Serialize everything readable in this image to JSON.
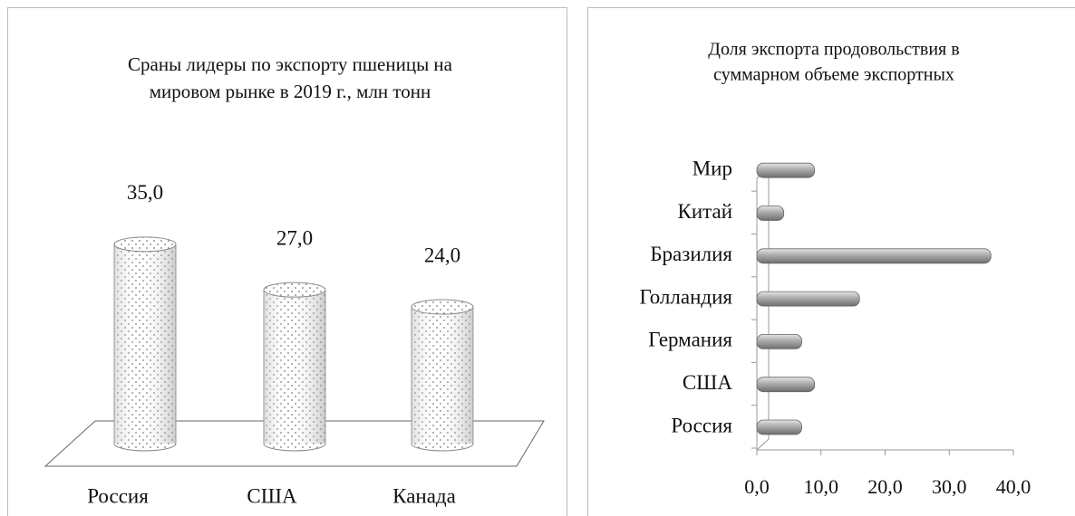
{
  "chart_data": [
    {
      "type": "cylinder",
      "title": [
        "Сраны лидеры по экспорту пшеницы на",
        "мировом рынке в 2019 г., млн тонн"
      ],
      "categories": [
        "Россия",
        "США",
        "Канада"
      ],
      "values": [
        35.0,
        27.0,
        24.0
      ],
      "value_labels": [
        "35,0",
        "27,0",
        "24,0"
      ]
    },
    {
      "type": "hbar",
      "title": [
        "Доля экспорта продовольствия в",
        "суммарном объеме экспортных"
      ],
      "categories": [
        "Россия",
        "США",
        "Германия",
        "Голландия",
        "Бразилия",
        "Китай",
        "Мир"
      ],
      "values": [
        7,
        9,
        7,
        16,
        36.5,
        4.2,
        9
      ],
      "color": "#a6a6a6",
      "xlim": [
        0,
        40
      ],
      "xticks": [
        {
          "value": 0,
          "label": "0,0"
        },
        {
          "value": 10,
          "label": "10,0"
        },
        {
          "value": 20,
          "label": "20,0"
        },
        {
          "value": 30,
          "label": "30,0"
        },
        {
          "value": 40,
          "label": "40,0"
        }
      ]
    }
  ]
}
